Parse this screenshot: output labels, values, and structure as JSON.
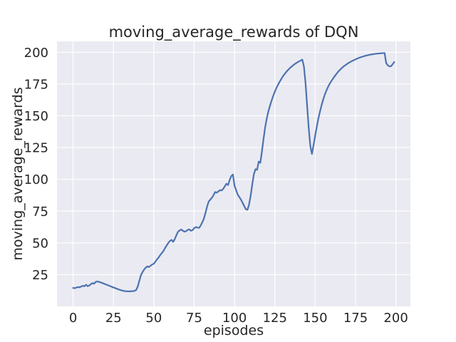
{
  "chart_data": {
    "type": "line",
    "title": "moving_average_rewards of DQN",
    "xlabel": "episodes",
    "ylabel": "moving_average_rewards",
    "x_ticks": [
      0,
      25,
      50,
      75,
      100,
      125,
      150,
      175,
      200
    ],
    "y_ticks": [
      25,
      50,
      75,
      100,
      125,
      150,
      175,
      200
    ],
    "xlim": [
      -10,
      209
    ],
    "ylim": [
      0,
      208.6
    ],
    "grid": true,
    "legend": null,
    "style": {
      "line_color": "#4c72b0",
      "axes_background": "#eaeaf2",
      "grid_color": "#ffffff",
      "text_color": "#262626",
      "figure_background": "#ffffff",
      "line_width": 2.2
    },
    "series": [
      {
        "name": "moving_average_rewards",
        "x_range": [
          0,
          199
        ],
        "x_step": 1,
        "values": [
          14.5,
          14.3,
          14.8,
          15.2,
          15.0,
          15.6,
          16.2,
          15.9,
          17.0,
          15.9,
          16.4,
          17.5,
          18.3,
          17.9,
          19.3,
          19.6,
          19.3,
          18.9,
          18.4,
          17.9,
          17.4,
          16.9,
          16.4,
          15.9,
          15.4,
          14.9,
          14.4,
          13.9,
          13.4,
          13.0,
          12.6,
          12.3,
          12.0,
          11.9,
          11.8,
          11.8,
          11.9,
          12.0,
          12.2,
          12.8,
          15.5,
          20.0,
          24.5,
          27.0,
          29.0,
          30.5,
          31.5,
          31.0,
          32.0,
          33.0,
          33.5,
          35.3,
          37.0,
          38.5,
          40.5,
          42.0,
          43.7,
          46.0,
          48.0,
          50.0,
          51.5,
          52.3,
          50.8,
          53.0,
          56.0,
          58.7,
          59.8,
          60.5,
          59.5,
          58.8,
          59.2,
          60.2,
          60.6,
          59.5,
          60.0,
          61.5,
          62.4,
          62.0,
          61.8,
          63.5,
          66.0,
          69.0,
          73.5,
          78.5,
          82.5,
          84.0,
          85.5,
          87.5,
          90.0,
          89.5,
          90.5,
          91.5,
          91.2,
          92.5,
          94.5,
          96.5,
          95.5,
          99.5,
          102.5,
          103.8,
          95.0,
          91.5,
          88.0,
          86.0,
          84.0,
          81.5,
          79.0,
          76.5,
          76.0,
          80.0,
          87.0,
          96.0,
          104.0,
          108.0,
          107.5,
          114.0,
          113.0,
          122.0,
          132.0,
          141.0,
          148.0,
          153.5,
          158.0,
          162.0,
          165.7,
          169.0,
          172.0,
          174.5,
          176.8,
          179.0,
          181.0,
          182.8,
          184.4,
          185.8,
          187.1,
          188.3,
          189.4,
          190.4,
          191.3,
          192.1,
          192.8,
          193.5,
          194.2,
          189.0,
          176.0,
          158.0,
          140.0,
          126.0,
          120.0,
          127.0,
          134.5,
          141.5,
          148.0,
          153.5,
          158.5,
          163.0,
          166.8,
          170.0,
          172.8,
          175.2,
          177.3,
          179.2,
          181.0,
          182.7,
          184.3,
          185.8,
          187.0,
          188.2,
          189.2,
          190.1,
          191.0,
          191.8,
          192.5,
          193.2,
          193.8,
          194.4,
          195.0,
          195.5,
          196.0,
          196.4,
          196.8,
          197.2,
          197.5,
          197.8,
          198.1,
          198.3,
          198.5,
          198.7,
          198.9,
          199.0,
          199.1,
          199.2,
          199.3,
          199.4,
          191.5,
          189.7,
          188.9,
          189.0,
          190.6,
          192.3
        ]
      }
    ]
  }
}
